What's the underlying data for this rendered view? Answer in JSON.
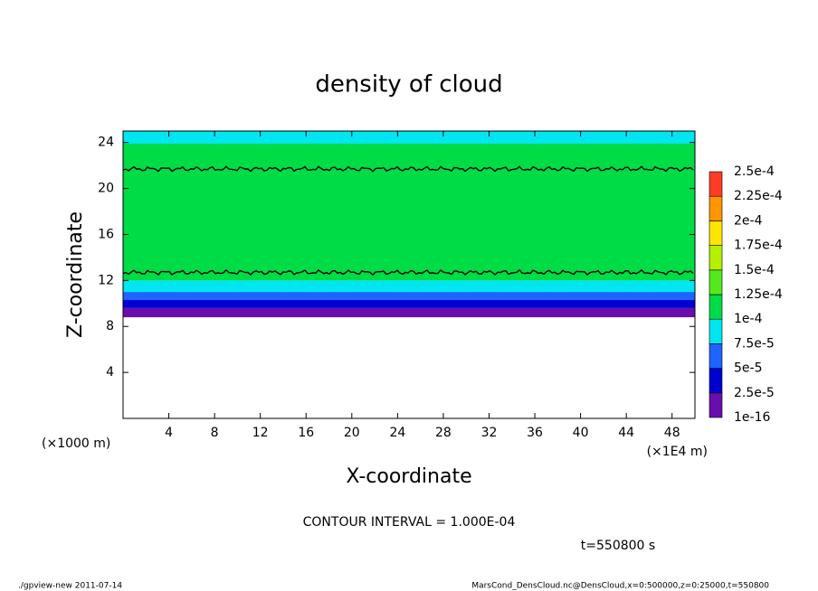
{
  "chart_data": {
    "type": "contour",
    "title": "density of cloud",
    "x_label": "X-coordinate",
    "y_label": "Z-coordinate",
    "x_unit": "(×1E4 m)",
    "y_unit": "(×1000 m)",
    "xlim": [
      0,
      50
    ],
    "ylim": [
      0,
      25
    ],
    "xticks": [
      4,
      8,
      12,
      16,
      20,
      24,
      28,
      32,
      36,
      40,
      44,
      48
    ],
    "yticks": [
      4,
      8,
      12,
      16,
      20,
      24
    ],
    "z": [
      8.8,
      9.6,
      10.3,
      11,
      12,
      23.9,
      25
    ],
    "values": [
      1e-05,
      3.5e-05,
      6e-05,
      8.5e-05,
      0.00011,
      8.5e-05
    ],
    "contour_z": [
      12.7,
      21.7
    ],
    "levels": [
      {
        "value": 1e-16,
        "label": "1e-16"
      },
      {
        "value": 2.5e-05,
        "label": "2.5e-5"
      },
      {
        "value": 5e-05,
        "label": "5e-5"
      },
      {
        "value": 7.5e-05,
        "label": "7.5e-5"
      },
      {
        "value": 0.0001,
        "label": "1e-4"
      },
      {
        "value": 0.000125,
        "label": "1.25e-4"
      },
      {
        "value": 0.00015,
        "label": "1.5e-4"
      },
      {
        "value": 0.000175,
        "label": "1.75e-4"
      },
      {
        "value": 0.0002,
        "label": "2e-4"
      },
      {
        "value": 0.000225,
        "label": "2.25e-4"
      },
      {
        "value": 0.00025,
        "label": "2.5e-4"
      }
    ],
    "colors": [
      "#6a0dad",
      "#0000d0",
      "#1e64ff",
      "#00e6f0",
      "#00dc46",
      "#55e81e",
      "#b4f000",
      "#ffe600",
      "#ff9600",
      "#ff3c28",
      "#ff8c96"
    ],
    "contour_interval": "CONTOUR INTERVAL = 1.000E-04",
    "time_label": "t=550800 s",
    "footer_left": "./gpview-new  2011-07-14",
    "footer_right": "MarsCond_DensCloud.nc@DensCloud,x=0:500000,z=0:25000,t=550800"
  }
}
